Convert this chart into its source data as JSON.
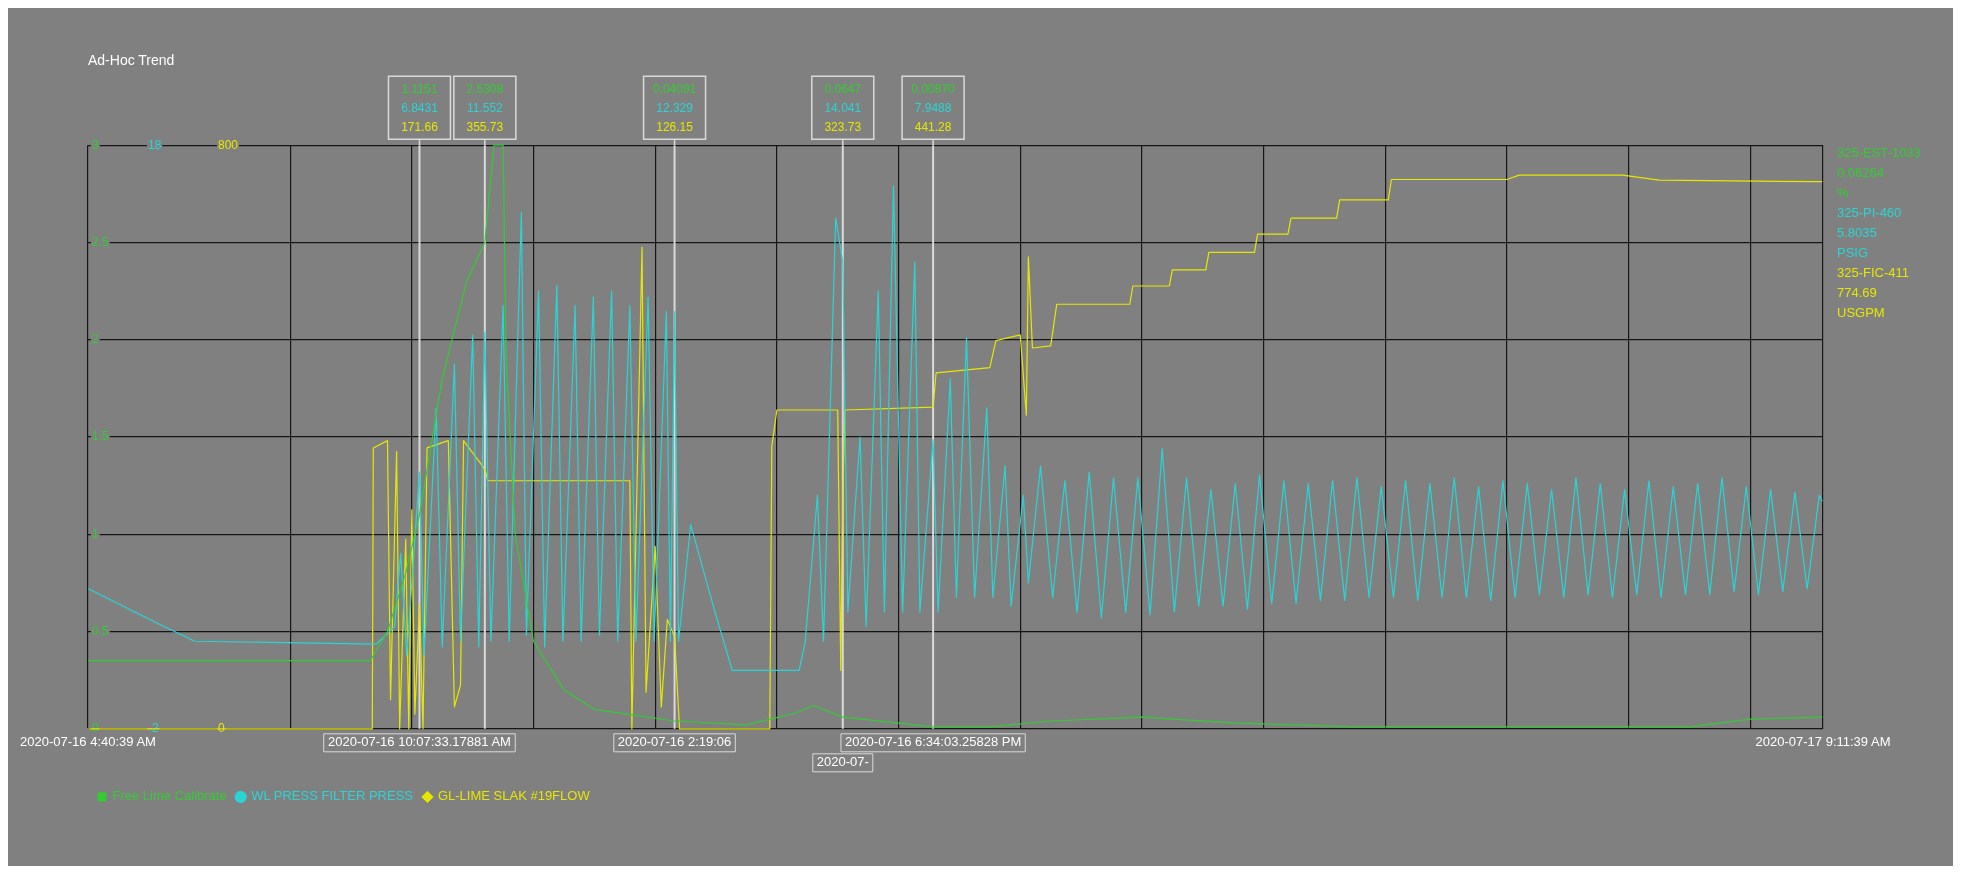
{
  "chart_data": {
    "type": "line",
    "title": "Ad-Hoc Trend",
    "xlim": [
      "2020-07-16T04:40:39",
      "2020-07-17T09:11:39"
    ],
    "xticks": [
      {
        "value": "2020-07-16T04:40:39",
        "label": "2020-07-16 4:40:39 AM"
      },
      {
        "value": "2020-07-16T08:00",
        "label": null
      },
      {
        "value": "2020-07-16T10:00",
        "label": null
      },
      {
        "value": "2020-07-16T12:00",
        "label": null
      },
      {
        "value": "2020-07-16T14:00",
        "label": null
      },
      {
        "value": "2020-07-16T16:00",
        "label": null
      },
      {
        "value": "2020-07-16T18:00",
        "label": null
      },
      {
        "value": "2020-07-16T20:00",
        "label": null
      },
      {
        "value": "2020-07-16T22:00",
        "label": null
      },
      {
        "value": "2020-07-17T00:00",
        "label": null
      },
      {
        "value": "2020-07-17T02:00",
        "label": null
      },
      {
        "value": "2020-07-17T04:00",
        "label": null
      },
      {
        "value": "2020-07-17T06:00",
        "label": null
      },
      {
        "value": "2020-07-17T08:00",
        "label": null
      },
      {
        "value": "2020-07-17T09:11:39",
        "label": "2020-07-17 9:11:39 AM"
      }
    ],
    "ylim": [
      0,
      3
    ],
    "yticks": [
      0,
      0.5,
      1,
      1.5,
      2,
      2.5,
      3
    ],
    "y2lim": [
      -2,
      18
    ],
    "y2ticks": [
      -2,
      18
    ],
    "y3lim": [
      0,
      800
    ],
    "y3ticks": [
      0,
      800
    ],
    "grid": true,
    "legend": "bottom",
    "series": [
      {
        "name": "Free Lime Calibrate",
        "color": "#33cc33",
        "x": [
          "2020-07-16T04:41",
          "2020-07-16T09:19",
          "2020-07-16T09:36",
          "2020-07-16T09:54",
          "2020-07-16T10:07:33",
          "2020-07-16T10:30",
          "2020-07-16T10:54",
          "2020-07-16T11:12",
          "2020-07-16T11:21",
          "2020-07-16T11:30",
          "2020-07-16T11:33",
          "2020-07-16T11:42",
          "2020-07-16T12:00",
          "2020-07-16T12:30",
          "2020-07-16T13:00",
          "2020-07-16T14:19:06",
          "2020-07-16T15:30",
          "2020-07-16T16:18",
          "2020-07-16T16:36",
          "2020-07-16T17:05",
          "2020-07-16T18:34:03",
          "2020-07-16T19:30",
          "2020-07-16T20:30",
          "2020-07-16T22:00",
          "2020-07-16T23:30",
          "2020-07-17T01:30",
          "2020-07-17T03:00",
          "2020-07-17T05:00",
          "2020-07-17T07:00",
          "2020-07-17T08:00",
          "2020-07-17T09:11"
        ],
        "values": [
          0.35,
          0.35,
          0.5,
          0.8,
          1.1,
          1.8,
          2.3,
          2.5,
          3.0,
          3.0,
          1.9,
          1.0,
          0.45,
          0.2,
          0.1,
          0.04,
          0.02,
          0.08,
          0.12,
          0.06,
          0.01,
          0.01,
          0.04,
          0.06,
          0.03,
          0.01,
          0.01,
          0.01,
          0.01,
          0.05,
          0.06
        ]
      },
      {
        "name": "WL PRESS FILTER PRESS",
        "color": "#2ad4d4",
        "axis": "y2",
        "x": [
          "2020-07-16T04:41",
          "2020-07-16T05:50",
          "2020-07-16T06:26",
          "2020-07-16T09:25",
          "2020-07-16T09:43",
          "2020-07-16T09:49",
          "2020-07-16T09:55",
          "2020-07-16T10:07:33",
          "2020-07-16T10:12",
          "2020-07-16T10:24",
          "2020-07-16T10:30",
          "2020-07-16T10:42",
          "2020-07-16T10:48",
          "2020-07-16T11:00",
          "2020-07-16T11:06",
          "2020-07-16T11:12",
          "2020-07-16T11:18",
          "2020-07-16T11:30",
          "2020-07-16T11:36",
          "2020-07-16T11:48",
          "2020-07-16T11:53",
          "2020-07-16T12:05",
          "2020-07-16T12:11",
          "2020-07-16T12:23",
          "2020-07-16T12:29",
          "2020-07-16T12:41",
          "2020-07-16T12:47",
          "2020-07-16T12:59",
          "2020-07-16T13:05",
          "2020-07-16T13:17",
          "2020-07-16T13:23",
          "2020-07-16T13:35",
          "2020-07-16T13:41",
          "2020-07-16T13:53",
          "2020-07-16T13:59",
          "2020-07-16T14:11",
          "2020-07-16T14:15",
          "2020-07-16T14:19:06",
          "2020-07-16T14:23",
          "2020-07-16T14:35",
          "2020-07-16T14:59",
          "2020-07-16T15:16",
          "2020-07-16T16:22",
          "2020-07-16T16:28",
          "2020-07-16T16:40",
          "2020-07-16T16:46",
          "2020-07-16T16:58",
          "2020-07-16T17:05",
          "2020-07-16T17:10",
          "2020-07-16T17:22",
          "2020-07-16T17:28",
          "2020-07-16T17:40",
          "2020-07-16T17:46",
          "2020-07-16T17:55",
          "2020-07-16T18:04",
          "2020-07-16T18:16",
          "2020-07-16T18:21",
          "2020-07-16T18:34:03",
          "2020-07-16T18:39",
          "2020-07-16T18:51",
          "2020-07-16T18:57",
          "2020-07-16T19:07",
          "2020-07-16T19:15",
          "2020-07-16T19:27",
          "2020-07-16T19:33",
          "2020-07-16T19:45",
          "2020-07-16T19:51",
          "2020-07-16T20:03",
          "2020-07-16T20:08",
          "2020-07-16T20:20",
          "2020-07-16T20:32",
          "2020-07-16T20:44",
          "2020-07-16T20:56",
          "2020-07-16T21:08",
          "2020-07-16T21:20",
          "2020-07-16T21:32",
          "2020-07-16T21:44",
          "2020-07-16T21:56",
          "2020-07-16T22:08",
          "2020-07-16T22:20",
          "2020-07-16T22:32",
          "2020-07-16T22:44",
          "2020-07-16T22:56",
          "2020-07-16T23:08",
          "2020-07-16T23:20",
          "2020-07-16T23:32",
          "2020-07-16T23:44",
          "2020-07-16T23:56",
          "2020-07-17T00:08",
          "2020-07-17T00:20",
          "2020-07-17T00:32",
          "2020-07-17T00:44",
          "2020-07-17T00:56",
          "2020-07-17T01:08",
          "2020-07-17T01:20",
          "2020-07-17T01:32",
          "2020-07-17T01:44",
          "2020-07-17T01:56",
          "2020-07-17T02:08",
          "2020-07-17T02:20",
          "2020-07-17T02:32",
          "2020-07-17T02:44",
          "2020-07-17T02:56",
          "2020-07-17T03:08",
          "2020-07-17T03:20",
          "2020-07-17T03:32",
          "2020-07-17T03:44",
          "2020-07-17T03:56",
          "2020-07-17T04:08",
          "2020-07-17T04:20",
          "2020-07-17T04:32",
          "2020-07-17T04:44",
          "2020-07-17T04:56",
          "2020-07-17T05:08",
          "2020-07-17T05:20",
          "2020-07-17T05:32",
          "2020-07-17T05:44",
          "2020-07-17T05:56",
          "2020-07-17T06:08",
          "2020-07-17T06:20",
          "2020-07-17T06:32",
          "2020-07-17T06:44",
          "2020-07-17T06:56",
          "2020-07-17T07:08",
          "2020-07-17T07:20",
          "2020-07-17T07:32",
          "2020-07-17T07:44",
          "2020-07-17T07:56",
          "2020-07-17T08:08",
          "2020-07-17T08:20",
          "2020-07-17T08:32",
          "2020-07-17T08:44",
          "2020-07-17T08:56",
          "2020-07-17T09:08",
          "2020-07-17T09:11"
        ],
        "values": [
          2.8,
          1.6,
          1.0,
          0.9,
          1.5,
          4.0,
          0.5,
          6.8,
          0.5,
          9.0,
          0.8,
          10.5,
          1.0,
          11.5,
          0.8,
          11.6,
          1.0,
          12.5,
          1.0,
          15.7,
          1.2,
          13.0,
          0.8,
          13.2,
          1.0,
          12.5,
          1.0,
          12.8,
          1.2,
          13.0,
          1.0,
          12.5,
          1.0,
          12.8,
          1.0,
          12.3,
          1.0,
          12.3,
          1.0,
          5.0,
          2.0,
          0.0,
          0.0,
          1.0,
          6.0,
          1.0,
          15.5,
          14.0,
          2.0,
          8.0,
          1.5,
          13.0,
          2.0,
          16.6,
          2.0,
          14.0,
          2.0,
          7.9,
          2.0,
          10.0,
          2.5,
          11.4,
          2.5,
          9.0,
          2.5,
          7.0,
          2.2,
          6.0,
          3.0,
          7.0,
          2.5,
          6.5,
          2.0,
          6.8,
          1.8,
          6.6,
          2.0,
          6.6,
          1.9,
          7.6,
          2.0,
          6.6,
          2.2,
          6.2,
          2.2,
          6.4,
          2.1,
          6.7,
          2.3,
          6.5,
          2.3,
          6.4,
          2.4,
          6.5,
          2.4,
          6.6,
          2.5,
          6.3,
          2.5,
          6.5,
          2.4,
          6.4,
          2.5,
          6.6,
          2.5,
          6.3,
          2.4,
          6.5,
          2.5,
          6.4,
          2.6,
          6.2,
          2.5,
          6.6,
          2.6,
          6.4,
          2.5,
          6.2,
          2.6,
          6.5,
          2.5,
          6.3,
          2.6,
          6.4,
          2.6,
          6.6,
          2.7,
          6.3,
          2.6,
          6.2,
          2.7,
          6.1,
          2.8,
          6.0,
          5.8
        ]
      },
      {
        "name": "GL-LIME SLAK #19FLOW",
        "color": "#e6e600",
        "axis": "y3",
        "x": [
          "2020-07-16T04:41",
          "2020-07-16T09:21",
          "2020-07-16T09:22",
          "2020-07-16T09:36",
          "2020-07-16T09:39",
          "2020-07-16T09:45",
          "2020-07-16T09:48",
          "2020-07-16T09:54",
          "2020-07-16T09:57",
          "2020-07-16T10:00",
          "2020-07-16T10:03",
          "2020-07-16T10:07:33",
          "2020-07-16T10:11",
          "2020-07-16T10:15",
          "2020-07-16T10:36",
          "2020-07-16T10:42",
          "2020-07-16T10:48",
          "2020-07-16T10:51",
          "2020-07-16T11:12",
          "2020-07-16T11:15",
          "2020-07-16T13:35",
          "2020-07-16T13:37",
          "2020-07-16T13:47",
          "2020-07-16T13:51",
          "2020-07-16T14:00",
          "2020-07-16T14:06",
          "2020-07-16T14:12",
          "2020-07-16T14:19:06",
          "2020-07-16T14:24",
          "2020-07-16T15:53",
          "2020-07-16T15:55",
          "2020-07-16T16:00",
          "2020-07-16T17:00",
          "2020-07-16T17:03",
          "2020-07-16T17:05",
          "2020-07-16T17:07",
          "2020-07-16T18:34:03",
          "2020-07-16T18:37",
          "2020-07-16T19:30",
          "2020-07-16T19:36",
          "2020-07-16T20:00",
          "2020-07-16T20:06",
          "2020-07-16T20:08",
          "2020-07-16T20:12",
          "2020-07-16T20:30",
          "2020-07-16T20:36",
          "2020-07-16T21:48",
          "2020-07-16T21:51",
          "2020-07-16T22:27",
          "2020-07-16T22:30",
          "2020-07-16T23:03",
          "2020-07-16T23:06",
          "2020-07-16T23:51",
          "2020-07-16T23:54",
          "2020-07-17T00:24",
          "2020-07-17T00:27",
          "2020-07-17T01:12",
          "2020-07-17T01:15",
          "2020-07-17T02:03",
          "2020-07-17T02:06",
          "2020-07-17T04:00",
          "2020-07-17T04:12",
          "2020-07-17T05:54",
          "2020-07-17T06:30",
          "2020-07-17T09:11"
        ],
        "values": [
          0,
          0,
          385,
          395,
          40,
          380,
          0,
          260,
          0,
          300,
          20,
          172,
          0,
          385,
          395,
          30,
          60,
          395,
          356,
          340,
          340,
          0,
          660,
          50,
          250,
          30,
          150,
          126,
          0,
          0,
          387,
          437,
          437,
          80,
          324,
          437,
          441,
          488,
          495,
          532,
          540,
          430,
          647,
          522,
          525,
          582,
          582,
          607,
          607,
          629,
          629,
          653,
          653,
          678,
          678,
          700,
          700,
          725,
          725,
          753,
          753,
          759,
          759,
          752,
          750
        ]
      }
    ],
    "ref_lines": [
      {
        "axis": "x",
        "value": "2020-07-16T10:07:33",
        "label": "2020-07-16 10:07:33.17881 AM",
        "color": "#d9d9d9"
      },
      {
        "axis": "x",
        "value": "2020-07-16T11:12",
        "label": null,
        "color": "#d9d9d9"
      },
      {
        "axis": "x",
        "value": "2020-07-16T14:19:06",
        "label": "2020-07-16 2:19:06",
        "color": "#d9d9d9"
      },
      {
        "axis": "x",
        "value": "2020-07-16T17:05",
        "label": "2020-07-",
        "color": "#d9d9d9"
      },
      {
        "axis": "x",
        "value": "2020-07-16T18:34:03",
        "label": "2020-07-16 6:34:03.25828 PM",
        "color": "#d9d9d9"
      }
    ],
    "annotations": [
      "1.1151",
      "6.8431",
      "171.66",
      "2.5308",
      "11.552",
      "355.73",
      "0.04091",
      "12.329",
      "126.15",
      "0.0647",
      "14.041",
      "323.73",
      "0.00870",
      "7.9488",
      "441.28",
      "325-EST-1033",
      "0.06264",
      "%",
      "325-PI-460",
      "5.8035",
      "PSIG",
      "325-FIC-411",
      "774.69",
      "USGPM"
    ]
  }
}
